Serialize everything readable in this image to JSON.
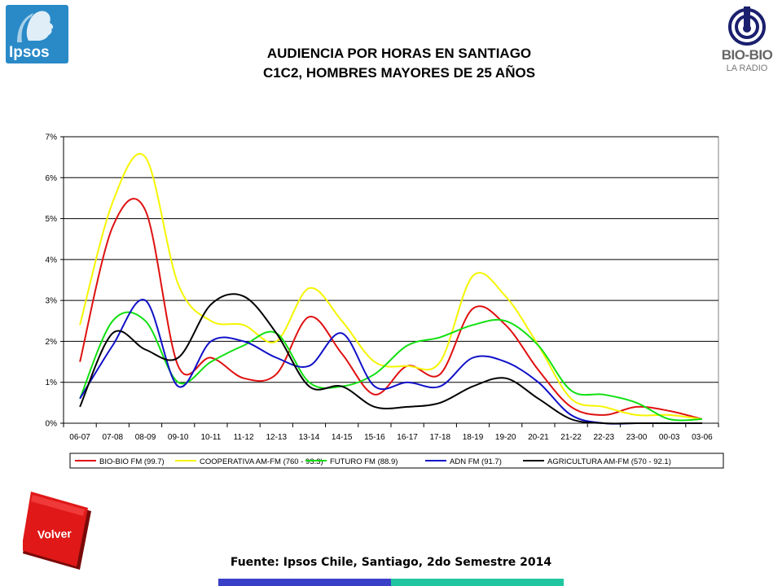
{
  "logos": {
    "ipsos_text": "Ipsos",
    "biobio_text": "BIO-BIO",
    "biobio_sub": "LA RADIO"
  },
  "title_line1": "AUDIENCIA POR HORAS EN SANTIAGO",
  "title_line2": "C1C2, HOMBRES MAYORES DE 25 AÑOS",
  "volver_label": "Volver",
  "source": "Fuente: Ipsos Chile, Santiago, 2do Semestre 2014",
  "colors": {
    "accent_blue": "#3a3fc8",
    "accent_green": "#20c6a0",
    "volver_red": "#e01818"
  },
  "chart_data": {
    "type": "line",
    "title": "",
    "xlabel": "",
    "ylabel": "",
    "ylim": [
      0,
      0.07
    ],
    "yticks": [
      "0%",
      "1%",
      "2%",
      "3%",
      "4%",
      "5%",
      "6%",
      "7%"
    ],
    "grid": true,
    "legend": "bottom",
    "categories": [
      "06-07",
      "07-08",
      "08-09",
      "09-10",
      "10-11",
      "11-12",
      "12-13",
      "13-14",
      "14-15",
      "15-16",
      "16-17",
      "17-18",
      "18-19",
      "19-20",
      "20-21",
      "21-22",
      "22-23",
      "23-00",
      "00-03",
      "03-06"
    ],
    "series": [
      {
        "name": "BIO-BIO FM (99.7)",
        "color": "#e01010",
        "values": [
          0.015,
          0.048,
          0.052,
          0.014,
          0.016,
          0.011,
          0.012,
          0.026,
          0.017,
          0.007,
          0.014,
          0.012,
          0.028,
          0.024,
          0.013,
          0.004,
          0.002,
          0.004,
          0.003,
          0.001
        ]
      },
      {
        "name": "COOPERATIVA AM-FM (760 - 93.3)",
        "color": "#f5f500",
        "values": [
          0.024,
          0.054,
          0.065,
          0.034,
          0.025,
          0.024,
          0.02,
          0.033,
          0.025,
          0.015,
          0.014,
          0.015,
          0.036,
          0.031,
          0.019,
          0.006,
          0.004,
          0.002,
          0.002,
          0.001
        ]
      },
      {
        "name": "FUTURO FM (88.9)",
        "color": "#10e010",
        "values": [
          0.006,
          0.025,
          0.025,
          0.01,
          0.015,
          0.019,
          0.022,
          0.01,
          0.009,
          0.012,
          0.019,
          0.021,
          0.024,
          0.025,
          0.019,
          0.008,
          0.007,
          0.005,
          0.001,
          0.001
        ]
      },
      {
        "name": "ADN FM (91.7)",
        "color": "#1010c8",
        "values": [
          0.006,
          0.019,
          0.03,
          0.009,
          0.02,
          0.02,
          0.016,
          0.014,
          0.022,
          0.009,
          0.01,
          0.009,
          0.016,
          0.015,
          0.01,
          0.002,
          0.0,
          0.0,
          0.0,
          0.0
        ]
      },
      {
        "name": "AGRICULTURA AM-FM (570 - 92.1)",
        "color": "#000000",
        "values": [
          0.004,
          0.022,
          0.018,
          0.016,
          0.029,
          0.031,
          0.022,
          0.009,
          0.009,
          0.004,
          0.004,
          0.005,
          0.009,
          0.011,
          0.006,
          0.001,
          0.0,
          0.0,
          0.0,
          0.0
        ]
      }
    ]
  }
}
